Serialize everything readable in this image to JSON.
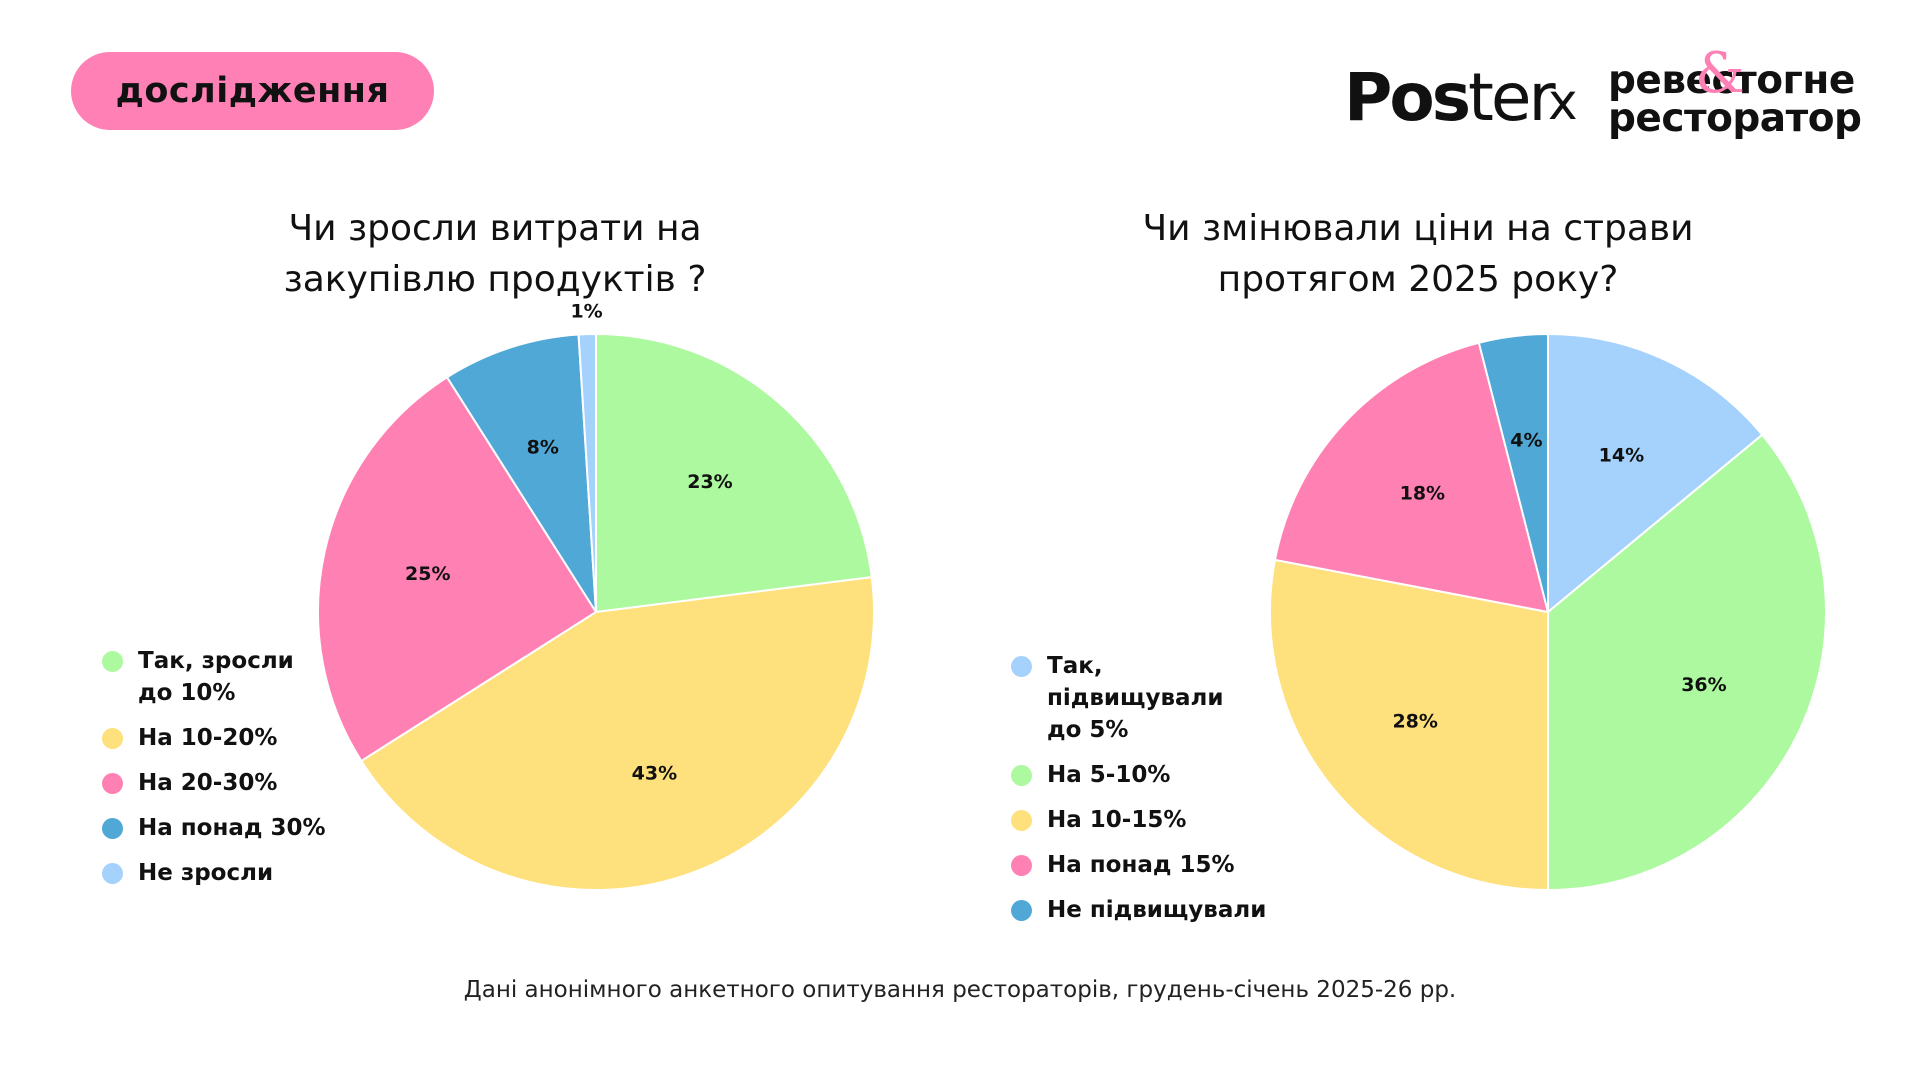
{
  "badge": {
    "label": "дослідження"
  },
  "logo": {
    "poster": "Pos",
    "poster_tail": "ter",
    "x": "x",
    "partner_line1": "реве",
    "partner_line1_tail": "стогне",
    "partner_line2": "ресторатор",
    "amp": "&"
  },
  "footnote": "Дані анонімного анкетного опитування рестораторів, грудень-січень 2025-26 рр.",
  "chart_data": [
    {
      "type": "pie",
      "title_line1": "Чи зросли витрати на",
      "title_line2": "закупівлю продуктів ?",
      "slices": [
        {
          "label": "Так, зросли\nдо 10%",
          "value": 23,
          "text": "23%",
          "color": "#adf99f"
        },
        {
          "label": "На 10-20%",
          "value": 43,
          "text": "43%",
          "color": "#fee07c"
        },
        {
          "label": "На 20-30%",
          "value": 25,
          "text": "25%",
          "color": "#ff81b4"
        },
        {
          "label": "На понад 30%",
          "value": 8,
          "text": "8%",
          "color": "#4fa8d6"
        },
        {
          "label": "Не зросли",
          "value": 1,
          "text": "1%",
          "color": "#a5d1fd"
        }
      ]
    },
    {
      "type": "pie",
      "title_line1": "Чи змінювали ціни на страви",
      "title_line2": "протягом 2025 року?",
      "slices": [
        {
          "label": "Так, підвищували\nдо 5%",
          "value": 14,
          "text": "14%",
          "color": "#a5d1fd"
        },
        {
          "label": "На 5-10%",
          "value": 36,
          "text": "36%",
          "color": "#adf99f"
        },
        {
          "label": "На 10-15%",
          "value": 28,
          "text": "28%",
          "color": "#fee07c"
        },
        {
          "label": "На понад 15%",
          "value": 18,
          "text": "18%",
          "color": "#ff81b4"
        },
        {
          "label": "Не підвищували",
          "value": 4,
          "text": "4%",
          "color": "#4fa8d6"
        }
      ]
    }
  ]
}
